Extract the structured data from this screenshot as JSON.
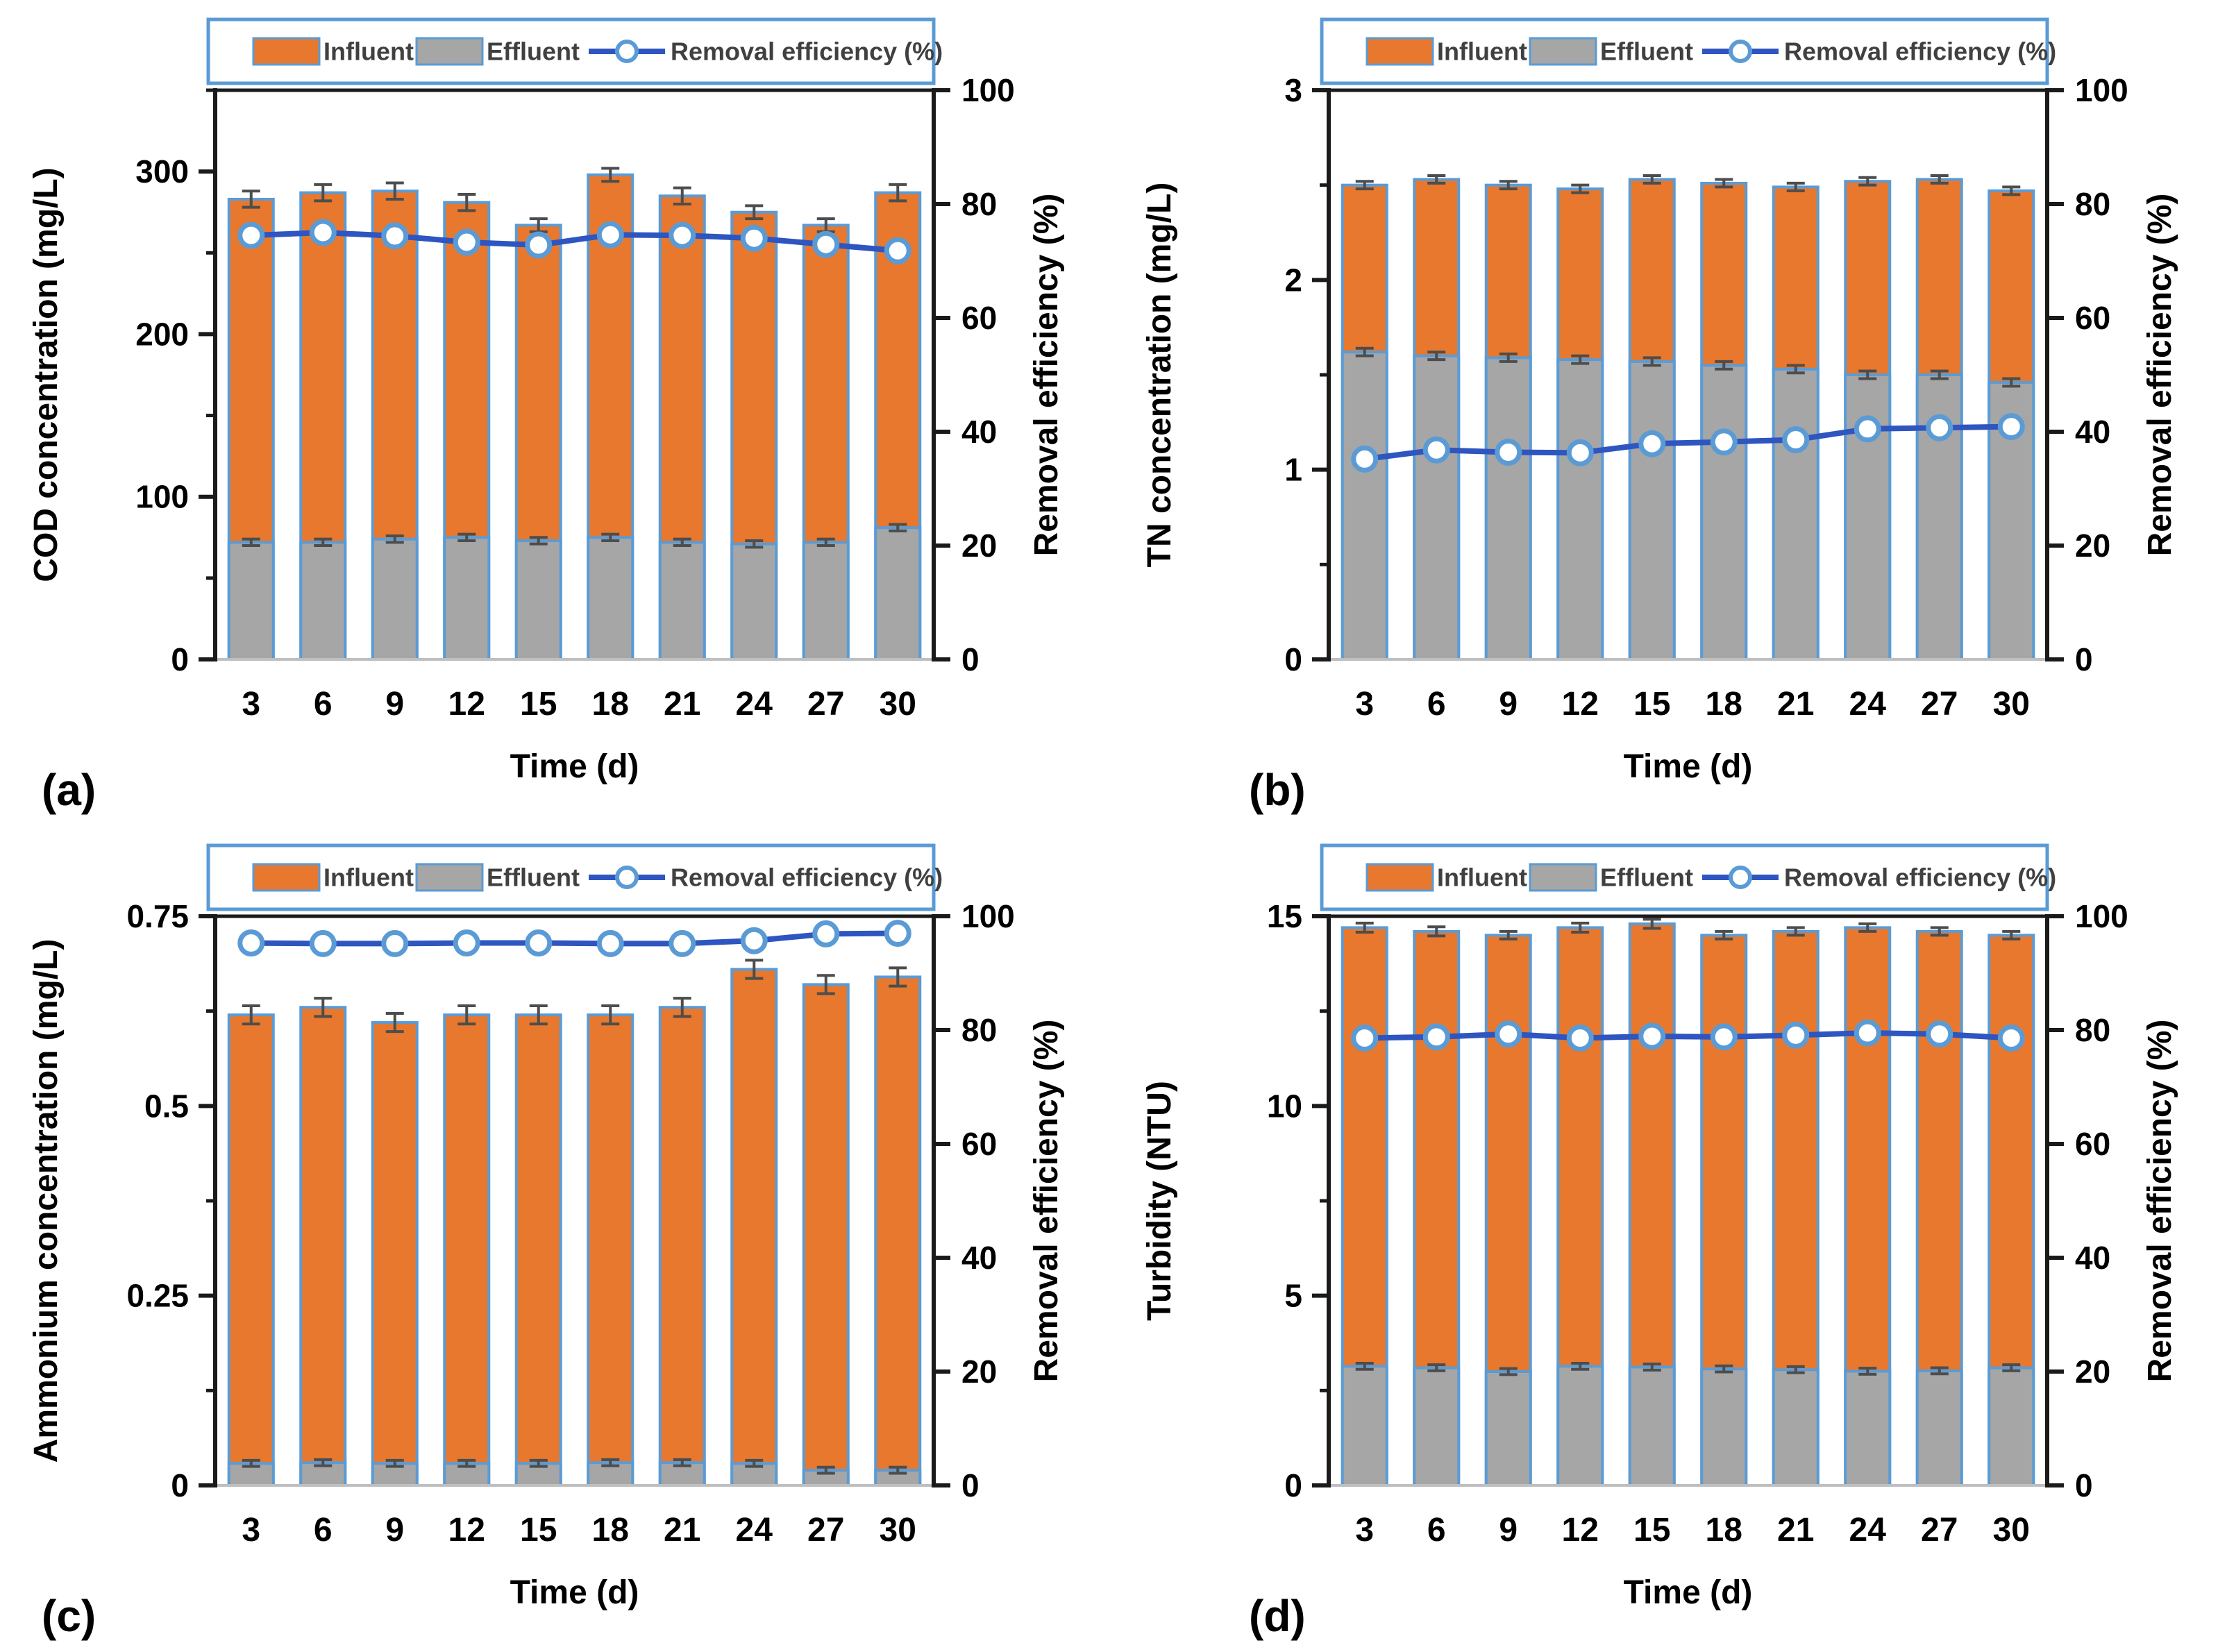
{
  "page": {
    "background": "#FFFFFF"
  },
  "colors": {
    "influent": "#E8782D",
    "effluent": "#A6A6A6",
    "bar_border": "#5B9BD5",
    "line": "#2E55C0",
    "marker_ring": "#5B9BD5",
    "marker_fill": "#FFFFFF",
    "error": "#4D4D4D",
    "axis": "#1A1A1A",
    "x_axis_line": "#BFBFBF",
    "legend_border": "#5B9BD5",
    "legend_text": "#404040",
    "text": "#000000"
  },
  "legend": {
    "influent_label": "Influent",
    "effluent_label": "Effluent",
    "efficiency_label": "Removal efficiency (%)"
  },
  "chart_data": [
    {
      "panel": "(a)",
      "type": "bar",
      "left_axis": {
        "title": "COD concentration (mg/L)",
        "min": 0,
        "max": 350,
        "tick_values": [
          0,
          100,
          200,
          300
        ],
        "tick_labels": [
          "0",
          "100",
          "200",
          "300"
        ],
        "minor_step": 50
      },
      "right_axis": {
        "title": "Removal efficiency (%)",
        "min": 0,
        "max": 100,
        "tick_values": [
          0,
          20,
          40,
          60,
          80,
          100
        ],
        "tick_labels": [
          "0",
          "20",
          "40",
          "60",
          "80",
          "100"
        ]
      },
      "x_axis": {
        "title": "Time (d)",
        "categories": [
          "3",
          "6",
          "9",
          "12",
          "15",
          "18",
          "21",
          "24",
          "27",
          "30"
        ]
      },
      "series": {
        "influent": {
          "name": "Influent",
          "values": [
            283,
            287,
            288,
            281,
            267,
            298,
            285,
            275,
            267,
            287
          ],
          "errors": [
            5,
            5,
            5,
            5,
            4,
            4,
            5,
            4,
            4,
            5
          ]
        },
        "effluent": {
          "name": "Effluent",
          "values": [
            72,
            72,
            74,
            75,
            73,
            75,
            72,
            71,
            72,
            81
          ],
          "errors": [
            2,
            2,
            2,
            2,
            2,
            2,
            2,
            2,
            2,
            2
          ]
        },
        "efficiency": {
          "name": "Removal efficiency (%)",
          "axis": "right",
          "values": [
            74.5,
            75.0,
            74.4,
            73.3,
            72.8,
            74.6,
            74.5,
            74.0,
            72.9,
            71.8
          ]
        }
      }
    },
    {
      "panel": "(b)",
      "type": "bar",
      "left_axis": {
        "title": "TN concentration (mg/L)",
        "min": 0,
        "max": 3,
        "tick_values": [
          0,
          1,
          2,
          3
        ],
        "tick_labels": [
          "0",
          "1",
          "2",
          "3"
        ],
        "minor_step": 0.5
      },
      "right_axis": {
        "title": "Removal efficiency (%)",
        "min": 0,
        "max": 100,
        "tick_values": [
          0,
          20,
          40,
          60,
          80,
          100
        ],
        "tick_labels": [
          "0",
          "20",
          "40",
          "60",
          "80",
          "100"
        ]
      },
      "x_axis": {
        "title": "Time (d)",
        "categories": [
          "3",
          "6",
          "9",
          "12",
          "15",
          "18",
          "21",
          "24",
          "27",
          "30"
        ]
      },
      "series": {
        "influent": {
          "name": "Influent",
          "values": [
            2.5,
            2.53,
            2.5,
            2.48,
            2.53,
            2.51,
            2.49,
            2.52,
            2.53,
            2.47
          ],
          "errors": [
            0.02,
            0.02,
            0.02,
            0.02,
            0.02,
            0.02,
            0.02,
            0.02,
            0.02,
            0.02
          ]
        },
        "effluent": {
          "name": "Effluent",
          "values": [
            1.62,
            1.6,
            1.59,
            1.58,
            1.57,
            1.55,
            1.53,
            1.5,
            1.5,
            1.46
          ],
          "errors": [
            0.02,
            0.02,
            0.02,
            0.02,
            0.02,
            0.02,
            0.02,
            0.02,
            0.02,
            0.02
          ]
        },
        "efficiency": {
          "name": "Removal efficiency (%)",
          "axis": "right",
          "values": [
            35.2,
            36.8,
            36.4,
            36.3,
            37.9,
            38.2,
            38.6,
            40.5,
            40.7,
            40.9
          ]
        }
      }
    },
    {
      "panel": "(c)",
      "type": "bar",
      "left_axis": {
        "title": "Ammonium concentration (mg/L)",
        "min": 0,
        "max": 0.75,
        "tick_values": [
          0,
          0.25,
          0.5,
          0.75
        ],
        "tick_labels": [
          "0",
          "0.25",
          "0.5",
          "0.75"
        ],
        "minor_step": 0.125
      },
      "right_axis": {
        "title": "Removal efficiency (%)",
        "min": 0,
        "max": 100,
        "tick_values": [
          0,
          20,
          40,
          60,
          80,
          100
        ],
        "tick_labels": [
          "0",
          "20",
          "40",
          "60",
          "80",
          "100"
        ]
      },
      "x_axis": {
        "title": "Time (d)",
        "categories": [
          "3",
          "6",
          "9",
          "12",
          "15",
          "18",
          "21",
          "24",
          "27",
          "30"
        ]
      },
      "series": {
        "influent": {
          "name": "Influent",
          "values": [
            0.62,
            0.63,
            0.61,
            0.62,
            0.62,
            0.62,
            0.63,
            0.68,
            0.66,
            0.67
          ],
          "errors": [
            0.012,
            0.012,
            0.012,
            0.012,
            0.012,
            0.012,
            0.012,
            0.012,
            0.012,
            0.012
          ]
        },
        "effluent": {
          "name": "Effluent",
          "values": [
            0.029,
            0.03,
            0.029,
            0.029,
            0.029,
            0.03,
            0.03,
            0.029,
            0.02,
            0.02
          ],
          "errors": [
            0.004,
            0.004,
            0.004,
            0.004,
            0.004,
            0.004,
            0.004,
            0.004,
            0.004,
            0.004
          ]
        },
        "efficiency": {
          "name": "Removal efficiency (%)",
          "axis": "right",
          "values": [
            95.3,
            95.2,
            95.2,
            95.3,
            95.3,
            95.2,
            95.2,
            95.7,
            96.9,
            97.0
          ]
        }
      }
    },
    {
      "panel": "(d)",
      "type": "bar",
      "left_axis": {
        "title": "Turbidity (NTU)",
        "min": 0,
        "max": 15,
        "tick_values": [
          0,
          5,
          10,
          15
        ],
        "tick_labels": [
          "0",
          "5",
          "10",
          "15"
        ],
        "minor_step": 2.5
      },
      "right_axis": {
        "title": "Removal efficiency (%)",
        "min": 0,
        "max": 100,
        "tick_values": [
          0,
          20,
          40,
          60,
          80,
          100
        ],
        "tick_labels": [
          "0",
          "20",
          "40",
          "60",
          "80",
          "100"
        ]
      },
      "x_axis": {
        "title": "Time (d)",
        "categories": [
          "3",
          "6",
          "9",
          "12",
          "15",
          "18",
          "21",
          "24",
          "27",
          "30"
        ]
      },
      "series": {
        "influent": {
          "name": "Influent",
          "values": [
            14.7,
            14.6,
            14.5,
            14.7,
            14.8,
            14.5,
            14.6,
            14.7,
            14.6,
            14.5
          ],
          "errors": [
            0.12,
            0.12,
            0.1,
            0.12,
            0.12,
            0.1,
            0.1,
            0.1,
            0.1,
            0.1
          ]
        },
        "effluent": {
          "name": "Effluent",
          "values": [
            3.14,
            3.1,
            3.0,
            3.14,
            3.12,
            3.07,
            3.05,
            3.01,
            3.02,
            3.1
          ],
          "errors": [
            0.08,
            0.08,
            0.08,
            0.08,
            0.08,
            0.08,
            0.08,
            0.08,
            0.08,
            0.08
          ]
        },
        "efficiency": {
          "name": "Removal efficiency (%)",
          "axis": "right",
          "values": [
            78.6,
            78.8,
            79.3,
            78.6,
            78.9,
            78.8,
            79.1,
            79.5,
            79.3,
            78.6
          ]
        }
      }
    }
  ]
}
